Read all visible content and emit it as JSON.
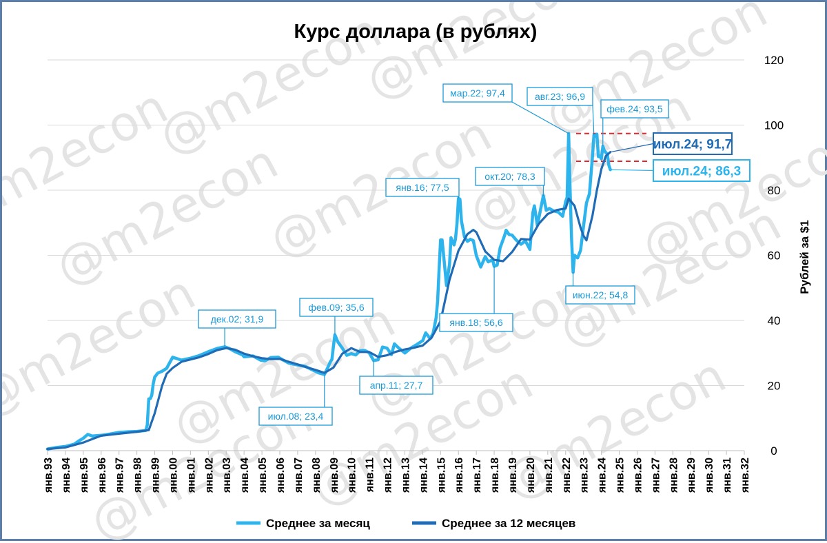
{
  "chart_data": {
    "type": "line",
    "title": "Курс доллара (в рублях)",
    "ylabel": "Рублей за $1",
    "xlabel": "",
    "ylim": [
      0,
      120
    ],
    "yticks": [
      0,
      20,
      40,
      60,
      80,
      100,
      120
    ],
    "grid": "horizontal",
    "y_axis_side": "right",
    "legend": "bottom",
    "x_start_year": 1993,
    "x_end_year": 2032,
    "categories": [
      "янв.93",
      "янв.94",
      "янв.95",
      "янв.96",
      "янв.97",
      "янв.98",
      "янв.99",
      "янв.00",
      "янв.01",
      "янв.02",
      "янв.03",
      "янв.04",
      "янв.05",
      "янв.06",
      "янв.07",
      "янв.08",
      "янв.09",
      "янв.10",
      "янв.11",
      "янв.12",
      "янв.13",
      "янв.14",
      "янв.15",
      "янв.16",
      "янв.17",
      "янв.18",
      "янв.19",
      "янв.20",
      "янв.21",
      "янв.22",
      "янв.23",
      "янв.24",
      "янв.25",
      "янв.26",
      "янв.27",
      "янв.28",
      "янв.29",
      "янв.30",
      "янв.31",
      "янв.32"
    ],
    "series": [
      {
        "name": "Среднее за месяц",
        "color": "#2eb4ec",
        "points": [
          [
            "1993-01",
            0.5
          ],
          [
            "1993-07",
            1.0
          ],
          [
            "1994-01",
            1.3
          ],
          [
            "1994-07",
            2.0
          ],
          [
            "1994-10",
            3.0
          ],
          [
            "1995-01",
            3.8
          ],
          [
            "1995-04",
            5.0
          ],
          [
            "1995-07",
            4.5
          ],
          [
            "1996-01",
            4.7
          ],
          [
            "1996-07",
            5.1
          ],
          [
            "1997-01",
            5.6
          ],
          [
            "1997-07",
            5.8
          ],
          [
            "1998-01",
            5.9
          ],
          [
            "1998-07",
            6.2
          ],
          [
            "1998-08",
            7.9
          ],
          [
            "1998-09",
            15.9
          ],
          [
            "1998-10",
            16.0
          ],
          [
            "1998-11",
            17.0
          ],
          [
            "1998-12",
            20.6
          ],
          [
            "1999-01",
            22.6
          ],
          [
            "1999-03",
            23.8
          ],
          [
            "1999-06",
            24.4
          ],
          [
            "1999-09",
            25.3
          ],
          [
            "2000-01",
            28.7
          ],
          [
            "2000-07",
            27.8
          ],
          [
            "2001-01",
            28.4
          ],
          [
            "2001-07",
            29.2
          ],
          [
            "2002-01",
            30.4
          ],
          [
            "2002-07",
            31.4
          ],
          [
            "2002-12",
            31.9
          ],
          [
            "2003-03",
            31.4
          ],
          [
            "2003-07",
            30.4
          ],
          [
            "2003-12",
            29.4
          ],
          [
            "2004-01",
            28.8
          ],
          [
            "2004-07",
            29.1
          ],
          [
            "2004-12",
            27.8
          ],
          [
            "2005-03",
            27.6
          ],
          [
            "2005-07",
            28.6
          ],
          [
            "2005-12",
            28.7
          ],
          [
            "2006-03",
            27.9
          ],
          [
            "2006-07",
            26.9
          ],
          [
            "2006-12",
            26.4
          ],
          [
            "2007-06",
            25.9
          ],
          [
            "2007-12",
            24.6
          ],
          [
            "2008-03",
            23.9
          ],
          [
            "2008-07",
            23.4
          ],
          [
            "2008-09",
            25.3
          ],
          [
            "2008-11",
            27.3
          ],
          [
            "2008-12",
            28.0
          ],
          [
            "2009-01",
            32.0
          ],
          [
            "2009-02",
            35.6
          ],
          [
            "2009-04",
            33.4
          ],
          [
            "2009-07",
            31.5
          ],
          [
            "2009-10",
            29.3
          ],
          [
            "2010-01",
            29.8
          ],
          [
            "2010-04",
            29.4
          ],
          [
            "2010-07",
            30.7
          ],
          [
            "2010-10",
            30.8
          ],
          [
            "2011-01",
            30.1
          ],
          [
            "2011-04",
            27.7
          ],
          [
            "2011-07",
            27.9
          ],
          [
            "2011-10",
            31.8
          ],
          [
            "2012-01",
            31.5
          ],
          [
            "2012-04",
            29.5
          ],
          [
            "2012-06",
            32.8
          ],
          [
            "2012-09",
            31.5
          ],
          [
            "2013-01",
            30.0
          ],
          [
            "2013-05",
            31.5
          ],
          [
            "2013-09",
            32.6
          ],
          [
            "2014-01",
            33.8
          ],
          [
            "2014-03",
            36.2
          ],
          [
            "2014-06",
            34.4
          ],
          [
            "2014-08",
            36.1
          ],
          [
            "2014-10",
            40.8
          ],
          [
            "2014-11",
            45.9
          ],
          [
            "2014-12",
            55.5
          ],
          [
            "2015-01",
            64.7
          ],
          [
            "2015-02",
            64.7
          ],
          [
            "2015-03",
            60.2
          ],
          [
            "2015-05",
            50.7
          ],
          [
            "2015-07",
            57.3
          ],
          [
            "2015-08",
            65.4
          ],
          [
            "2015-10",
            63.2
          ],
          [
            "2015-11",
            65.0
          ],
          [
            "2015-12",
            69.7
          ],
          [
            "2016-01",
            77.5
          ],
          [
            "2016-02",
            77.2
          ],
          [
            "2016-03",
            70.5
          ],
          [
            "2016-05",
            65.7
          ],
          [
            "2016-07",
            64.3
          ],
          [
            "2016-09",
            64.9
          ],
          [
            "2016-11",
            64.5
          ],
          [
            "2016-12",
            62.2
          ],
          [
            "2017-01",
            59.9
          ],
          [
            "2017-04",
            56.4
          ],
          [
            "2017-07",
            59.6
          ],
          [
            "2017-09",
            58.0
          ],
          [
            "2017-12",
            58.6
          ],
          [
            "2018-01",
            56.6
          ],
          [
            "2018-03",
            57.0
          ],
          [
            "2018-05",
            62.3
          ],
          [
            "2018-08",
            66.1
          ],
          [
            "2018-09",
            67.7
          ],
          [
            "2018-11",
            66.4
          ],
          [
            "2019-01",
            66.2
          ],
          [
            "2019-04",
            64.6
          ],
          [
            "2019-07",
            63.4
          ],
          [
            "2019-10",
            64.4
          ],
          [
            "2020-01",
            61.8
          ],
          [
            "2020-03",
            73.1
          ],
          [
            "2020-04",
            75.2
          ],
          [
            "2020-06",
            69.2
          ],
          [
            "2020-08",
            73.7
          ],
          [
            "2020-10",
            78.3
          ],
          [
            "2020-12",
            73.8
          ],
          [
            "2021-02",
            74.4
          ],
          [
            "2021-05",
            73.6
          ],
          [
            "2021-08",
            73.3
          ],
          [
            "2021-11",
            72.0
          ],
          [
            "2022-01",
            76.5
          ],
          [
            "2022-02",
            77.8
          ],
          [
            "2022-03",
            97.4
          ],
          [
            "2022-04",
            79.5
          ],
          [
            "2022-05",
            64.9
          ],
          [
            "2022-06",
            54.8
          ],
          [
            "2022-07",
            60.0
          ],
          [
            "2022-09",
            59.2
          ],
          [
            "2022-11",
            61.5
          ],
          [
            "2023-01",
            68.9
          ],
          [
            "2023-03",
            76.1
          ],
          [
            "2023-05",
            78.9
          ],
          [
            "2023-07",
            90.4
          ],
          [
            "2023-08",
            96.9
          ],
          [
            "2023-09",
            96.6
          ],
          [
            "2023-10",
            97.2
          ],
          [
            "2023-11",
            90.3
          ],
          [
            "2023-12",
            90.5
          ],
          [
            "2024-01",
            89.6
          ],
          [
            "2024-02",
            93.5
          ],
          [
            "2024-03",
            92.1
          ],
          [
            "2024-05",
            91.0
          ],
          [
            "2024-06",
            87.7
          ],
          [
            "2024-07",
            86.3
          ]
        ]
      },
      {
        "name": "Среднее за 12 месяцев",
        "color": "#1f6bb5",
        "points": [
          [
            "1993-01",
            0.5
          ],
          [
            "1994-01",
            1.0
          ],
          [
            "1995-01",
            2.5
          ],
          [
            "1996-01",
            4.6
          ],
          [
            "1997-01",
            5.2
          ],
          [
            "1998-01",
            5.8
          ],
          [
            "1998-09",
            6.3
          ],
          [
            "1999-01",
            11.5
          ],
          [
            "1999-06",
            20.0
          ],
          [
            "1999-09",
            23.6
          ],
          [
            "2000-01",
            25.4
          ],
          [
            "2000-07",
            27.3
          ],
          [
            "2001-01",
            28.0
          ],
          [
            "2001-07",
            28.7
          ],
          [
            "2002-01",
            29.7
          ],
          [
            "2002-07",
            30.9
          ],
          [
            "2003-01",
            31.5
          ],
          [
            "2003-07",
            31.0
          ],
          [
            "2004-01",
            29.8
          ],
          [
            "2004-07",
            29.0
          ],
          [
            "2005-01",
            28.4
          ],
          [
            "2005-07",
            28.1
          ],
          [
            "2006-01",
            28.2
          ],
          [
            "2006-07",
            27.3
          ],
          [
            "2007-01",
            26.5
          ],
          [
            "2007-07",
            25.6
          ],
          [
            "2008-01",
            24.8
          ],
          [
            "2008-07",
            23.9
          ],
          [
            "2009-01",
            25.5
          ],
          [
            "2009-07",
            29.8
          ],
          [
            "2010-01",
            31.5
          ],
          [
            "2010-07",
            30.3
          ],
          [
            "2011-01",
            30.3
          ],
          [
            "2011-07",
            28.8
          ],
          [
            "2012-01",
            29.3
          ],
          [
            "2012-07",
            30.4
          ],
          [
            "2013-01",
            31.1
          ],
          [
            "2013-07",
            31.6
          ],
          [
            "2014-01",
            32.3
          ],
          [
            "2014-07",
            34.7
          ],
          [
            "2015-01",
            39.8
          ],
          [
            "2015-07",
            52.5
          ],
          [
            "2016-01",
            61.4
          ],
          [
            "2016-07",
            66.5
          ],
          [
            "2016-11",
            67.8
          ],
          [
            "2017-01",
            67.1
          ],
          [
            "2017-07",
            61.2
          ],
          [
            "2018-01",
            58.6
          ],
          [
            "2018-07",
            58.2
          ],
          [
            "2019-01",
            61.0
          ],
          [
            "2019-07",
            65.0
          ],
          [
            "2020-01",
            64.8
          ],
          [
            "2020-07",
            69.7
          ],
          [
            "2021-01",
            72.7
          ],
          [
            "2021-07",
            73.9
          ],
          [
            "2022-01",
            74.4
          ],
          [
            "2022-03",
            77.4
          ],
          [
            "2022-07",
            75.2
          ],
          [
            "2022-11",
            68.5
          ],
          [
            "2023-01",
            66.0
          ],
          [
            "2023-03",
            64.6
          ],
          [
            "2023-07",
            72.2
          ],
          [
            "2023-10",
            80.0
          ],
          [
            "2024-01",
            86.5
          ],
          [
            "2024-04",
            90.5
          ],
          [
            "2024-07",
            91.7
          ]
        ]
      }
    ],
    "annotations": [
      {
        "label": "дек.02; 31,9",
        "date": "2002-12",
        "value": 31.9,
        "color": "#1a9ad8"
      },
      {
        "label": "июл.08; 23,4",
        "date": "2008-07",
        "value": 23.4,
        "color": "#1a9ad8"
      },
      {
        "label": "фев.09; 35,6",
        "date": "2009-02",
        "value": 35.6,
        "color": "#1a9ad8"
      },
      {
        "label": "апр.11; 27,7",
        "date": "2011-04",
        "value": 27.7,
        "color": "#1a9ad8"
      },
      {
        "label": "янв.16; 77,5",
        "date": "2016-01",
        "value": 77.5,
        "color": "#1a9ad8"
      },
      {
        "label": "янв.18; 56,6",
        "date": "2018-01",
        "value": 56.6,
        "color": "#1a9ad8"
      },
      {
        "label": "окт.20; 78,3",
        "date": "2020-10",
        "value": 78.3,
        "color": "#1a9ad8"
      },
      {
        "label": "мар.22; 97,4",
        "date": "2022-03",
        "value": 97.4,
        "color": "#1a9ad8"
      },
      {
        "label": "июн.22; 54,8",
        "date": "2022-06",
        "value": 54.8,
        "color": "#1a9ad8"
      },
      {
        "label": "авг.23; 96,9",
        "date": "2023-08",
        "value": 96.9,
        "color": "#1a9ad8"
      },
      {
        "label": "фев.24; 93,5",
        "date": "2024-02",
        "value": 93.5,
        "color": "#1a9ad8"
      },
      {
        "label": "июл.24; 91,7",
        "date": "2024-07",
        "value": 91.7,
        "color": "#1f6bb5"
      },
      {
        "label": "июл.24; 86,3",
        "date": "2024-07",
        "value": 86.3,
        "color": "#2eb4ec"
      }
    ],
    "reference_lines": [
      {
        "value": 97.4,
        "color": "#e8262b",
        "style": "dashed"
      },
      {
        "value": 88.9,
        "color": "#e8262b",
        "style": "dashed"
      }
    ]
  },
  "watermark": "@m2econ"
}
